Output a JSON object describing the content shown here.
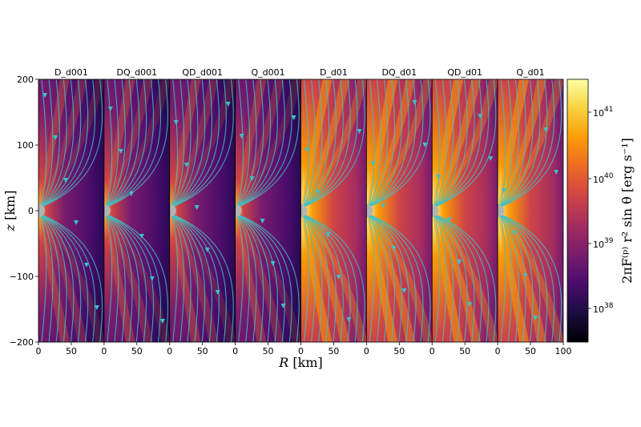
{
  "figure": {
    "panels": [
      {
        "title": "D_d001",
        "case": "low"
      },
      {
        "title": "DQ_d001",
        "case": "low"
      },
      {
        "title": "QD_d001",
        "case": "low"
      },
      {
        "title": "Q_d001",
        "case": "low"
      },
      {
        "title": "D_d01",
        "case": "high"
      },
      {
        "title": "DQ_d01",
        "case": "high"
      },
      {
        "title": "QD_d01",
        "case": "high"
      },
      {
        "title": "Q_d01",
        "case": "high"
      }
    ],
    "x_axis": {
      "label_main": "R",
      "label_unit": "[km]",
      "ticks": [
        "0",
        "50",
        "0",
        "50",
        "0",
        "50",
        "0",
        "50",
        "0",
        "50",
        "0",
        "50",
        "0",
        "50",
        "0",
        "50",
        "100"
      ]
    },
    "y_axis": {
      "label_main": "z",
      "label_unit": "[km]",
      "ticks": [
        "200",
        "100",
        "0",
        "−100",
        "−200"
      ]
    },
    "colorbar": {
      "label": "2πF⁽ᵖ⁾ r² sin θ  [erg s⁻¹]",
      "ticks": [
        {
          "base": "10",
          "exp": "41"
        },
        {
          "base": "10",
          "exp": "40"
        },
        {
          "base": "10",
          "exp": "39"
        },
        {
          "base": "10",
          "exp": "38"
        }
      ],
      "colormap": "inferno",
      "stops": [
        "#000004",
        "#1b0c41",
        "#4a0c6b",
        "#781c6d",
        "#a52c60",
        "#cf4446",
        "#ed6925",
        "#fb9b06",
        "#f7d13d",
        "#fcffa4"
      ]
    },
    "colors": {
      "streamline": "#3ec1c6",
      "body": "#b3b3b3"
    }
  }
}
